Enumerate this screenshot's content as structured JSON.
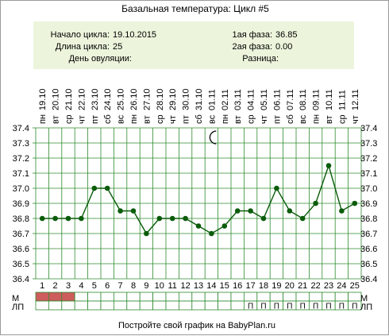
{
  "title": "Базальная температура: Цикл #5",
  "info": {
    "start_label": "Начало цикла:",
    "start_value": "19.10.2015",
    "length_label": "Длина цикла:",
    "length_value": "25",
    "ovulation_label": "День овуляции:",
    "ovulation_value": "",
    "phase1_label": "1ая фаза:",
    "phase1_value": "36.85",
    "phase2_label": "2ая фаза:",
    "phase2_value": "0.00",
    "diff_label": "Разница:",
    "diff_value": ""
  },
  "row_labels": {
    "m": "М",
    "lp": "ЛП"
  },
  "footer": "Постройте свой график на BabyPlan.ru",
  "colors": {
    "info_bg": "#ecf5dc",
    "line": "#0a5c0a",
    "point": "#0a5c0a",
    "grid": "#2e8b2e",
    "menstruation": "#cd5c5c"
  },
  "moon_day": 14,
  "chart_data": {
    "type": "line",
    "title": "Базальная температура: Цикл #5",
    "days": [
      1,
      2,
      3,
      4,
      5,
      6,
      7,
      8,
      9,
      10,
      11,
      12,
      13,
      14,
      15,
      16,
      17,
      18,
      19,
      20,
      21,
      22,
      23,
      24,
      25
    ],
    "weekdays": [
      "пн",
      "вт",
      "ср",
      "чт",
      "пт",
      "сб",
      "вс",
      "пн",
      "вт",
      "ср",
      "чт",
      "пт",
      "сб",
      "вс",
      "пн",
      "вт",
      "ср",
      "чт",
      "пт",
      "сб",
      "вс",
      "пн",
      "вт",
      "ср",
      "чт"
    ],
    "dates": [
      "19.10",
      "20.10",
      "21.10",
      "22.10",
      "23.10",
      "24.10",
      "25.10",
      "26.10",
      "27.10",
      "28.10",
      "29.10",
      "30.10",
      "31.10",
      "01.11",
      "02.11",
      "03.11",
      "04.11",
      "05.11",
      "06.11",
      "07.11",
      "08.11",
      "09.11",
      "10.11",
      "11.11",
      "12.11"
    ],
    "values": [
      36.8,
      36.8,
      36.8,
      36.8,
      37.0,
      37.0,
      36.85,
      36.85,
      36.7,
      36.8,
      36.8,
      36.8,
      36.75,
      36.7,
      36.75,
      36.85,
      36.85,
      36.8,
      37.0,
      36.85,
      36.8,
      36.9,
      37.15,
      36.85,
      36.9
    ],
    "y_ticks": [
      "37.4",
      "37.3",
      "37.2",
      "37.1",
      "37.0",
      "36.9",
      "36.8",
      "36.7",
      "36.6",
      "36.5",
      "36.4"
    ],
    "ylim": [
      36.4,
      37.4
    ],
    "grid": true,
    "menstruation": [
      1,
      1,
      1,
      0,
      0,
      0,
      0,
      0,
      0,
      0,
      0,
      0,
      0,
      0,
      0,
      0,
      0,
      0,
      0,
      0,
      0,
      0,
      0,
      0,
      0
    ],
    "lp_marks": [
      "",
      "",
      "",
      "",
      "",
      "",
      "",
      "",
      "",
      "",
      "",
      "",
      "",
      "",
      "",
      "",
      "П",
      "П",
      "П",
      "П",
      "П",
      "П",
      "П",
      "П",
      "П"
    ]
  }
}
